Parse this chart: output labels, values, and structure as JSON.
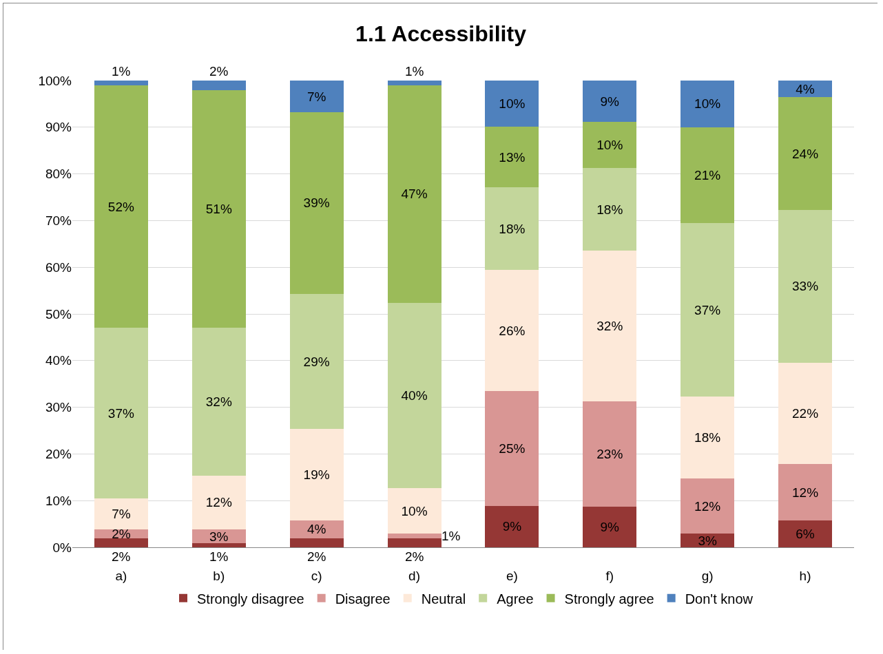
{
  "chart_data": {
    "type": "bar",
    "title": "1.1 Accessibility",
    "categories": [
      "a)",
      "b)",
      "c)",
      "d)",
      "e)",
      "f)",
      "g)",
      "h)"
    ],
    "stacked": true,
    "ylim": [
      0,
      100
    ],
    "yticks": [
      {
        "value": 0,
        "label": "0%"
      },
      {
        "value": 10,
        "label": "10%"
      },
      {
        "value": 20,
        "label": "20%"
      },
      {
        "value": 30,
        "label": "30%"
      },
      {
        "value": 40,
        "label": "40%"
      },
      {
        "value": 50,
        "label": "50%"
      },
      {
        "value": 60,
        "label": "60%"
      },
      {
        "value": 70,
        "label": "70%"
      },
      {
        "value": 80,
        "label": "80%"
      },
      {
        "value": 90,
        "label": "90%"
      },
      {
        "value": 100,
        "label": "100%"
      }
    ],
    "grid": "y",
    "legend": "bottom",
    "series": [
      {
        "name": "Strongly disagree",
        "color": "#953735",
        "values": [
          1.9,
          0.9,
          1.9,
          1.9,
          8.9,
          8.7,
          2.9,
          5.8
        ],
        "value_labels": [
          "2%",
          "1%",
          "2%",
          "2%",
          "9%",
          "9%",
          "3%",
          "6%"
        ]
      },
      {
        "name": "Disagree",
        "color": "#d99694",
        "values": [
          1.9,
          2.9,
          3.9,
          1.0,
          24.6,
          22.6,
          11.8,
          12.0
        ],
        "value_labels": [
          "2%",
          "3%",
          "4%",
          "1%",
          "25%",
          "23%",
          "12%",
          "12%"
        ]
      },
      {
        "name": "Neutral",
        "color": "#fde9d9",
        "values": [
          6.7,
          11.6,
          19.5,
          9.8,
          25.9,
          32.3,
          17.6,
          21.8
        ],
        "value_labels": [
          "7%",
          "12%",
          "19%",
          "10%",
          "26%",
          "32%",
          "18%",
          "22%"
        ]
      },
      {
        "name": "Agree",
        "color": "#c3d69b",
        "values": [
          36.5,
          31.6,
          29.0,
          39.7,
          17.7,
          17.6,
          37.1,
          32.7
        ],
        "value_labels": [
          "37%",
          "32%",
          "29%",
          "40%",
          "18%",
          "18%",
          "37%",
          "33%"
        ]
      },
      {
        "name": "Strongly agree",
        "color": "#9bbb59",
        "values": [
          52.0,
          51.0,
          38.9,
          46.6,
          13.0,
          9.9,
          20.6,
          24.1
        ],
        "value_labels": [
          "52%",
          "51%",
          "39%",
          "47%",
          "13%",
          "10%",
          "21%",
          "24%"
        ]
      },
      {
        "name": "Don't know",
        "color": "#4f81bd",
        "values": [
          1.0,
          2.0,
          6.8,
          1.0,
          9.9,
          8.9,
          10.0,
          3.6
        ],
        "value_labels": [
          "1%",
          "2%",
          "7%",
          "1%",
          "10%",
          "9%",
          "10%",
          "4%"
        ]
      }
    ]
  }
}
